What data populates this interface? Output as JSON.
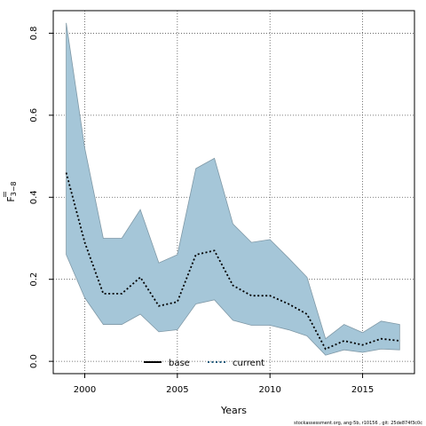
{
  "chart_data": {
    "type": "area",
    "xlabel": "Years",
    "ylabel_main": "F",
    "ylabel_sub": "3−8",
    "xlim": [
      1998.3,
      2017.8
    ],
    "ylim": [
      -0.03,
      0.855
    ],
    "xticks": [
      2000,
      2005,
      2010,
      2015
    ],
    "yticks": [
      0.0,
      0.2,
      0.4,
      0.6,
      0.8
    ],
    "ytick_labels": [
      "0.0",
      "0.2",
      "0.4",
      "0.6",
      "0.8"
    ],
    "grid": true,
    "x": [
      1999,
      2000,
      2001,
      2002,
      2003,
      2004,
      2005,
      2006,
      2007,
      2008,
      2009,
      2010,
      2011,
      2012,
      2013,
      2014,
      2015,
      2016,
      2017
    ],
    "series": [
      {
        "name": "current",
        "values": [
          0.46,
          0.29,
          0.165,
          0.165,
          0.205,
          0.135,
          0.145,
          0.26,
          0.27,
          0.185,
          0.16,
          0.16,
          0.14,
          0.115,
          0.03,
          0.05,
          0.04,
          0.055,
          0.05
        ],
        "lower": [
          0.26,
          0.155,
          0.09,
          0.09,
          0.115,
          0.072,
          0.077,
          0.14,
          0.15,
          0.1,
          0.088,
          0.088,
          0.077,
          0.062,
          0.015,
          0.028,
          0.022,
          0.03,
          0.028
        ],
        "upper": [
          0.825,
          0.52,
          0.3,
          0.3,
          0.37,
          0.24,
          0.26,
          0.47,
          0.495,
          0.335,
          0.29,
          0.297,
          0.252,
          0.205,
          0.055,
          0.09,
          0.07,
          0.098,
          0.09
        ]
      }
    ],
    "legend": [
      {
        "label": "base",
        "style": "solid"
      },
      {
        "label": "current",
        "style": "dotted"
      }
    ],
    "legend_position": "bottom-center",
    "colors": {
      "band_fill": "#a5c6d8",
      "band_stroke": "#7f98a6",
      "current_line": "#000000",
      "current_legend": "#1f5a7c",
      "base_line": "#000000"
    }
  },
  "footer": "stockassessment.org, ang-5b, r10156 , git: 25de874f3c0c"
}
